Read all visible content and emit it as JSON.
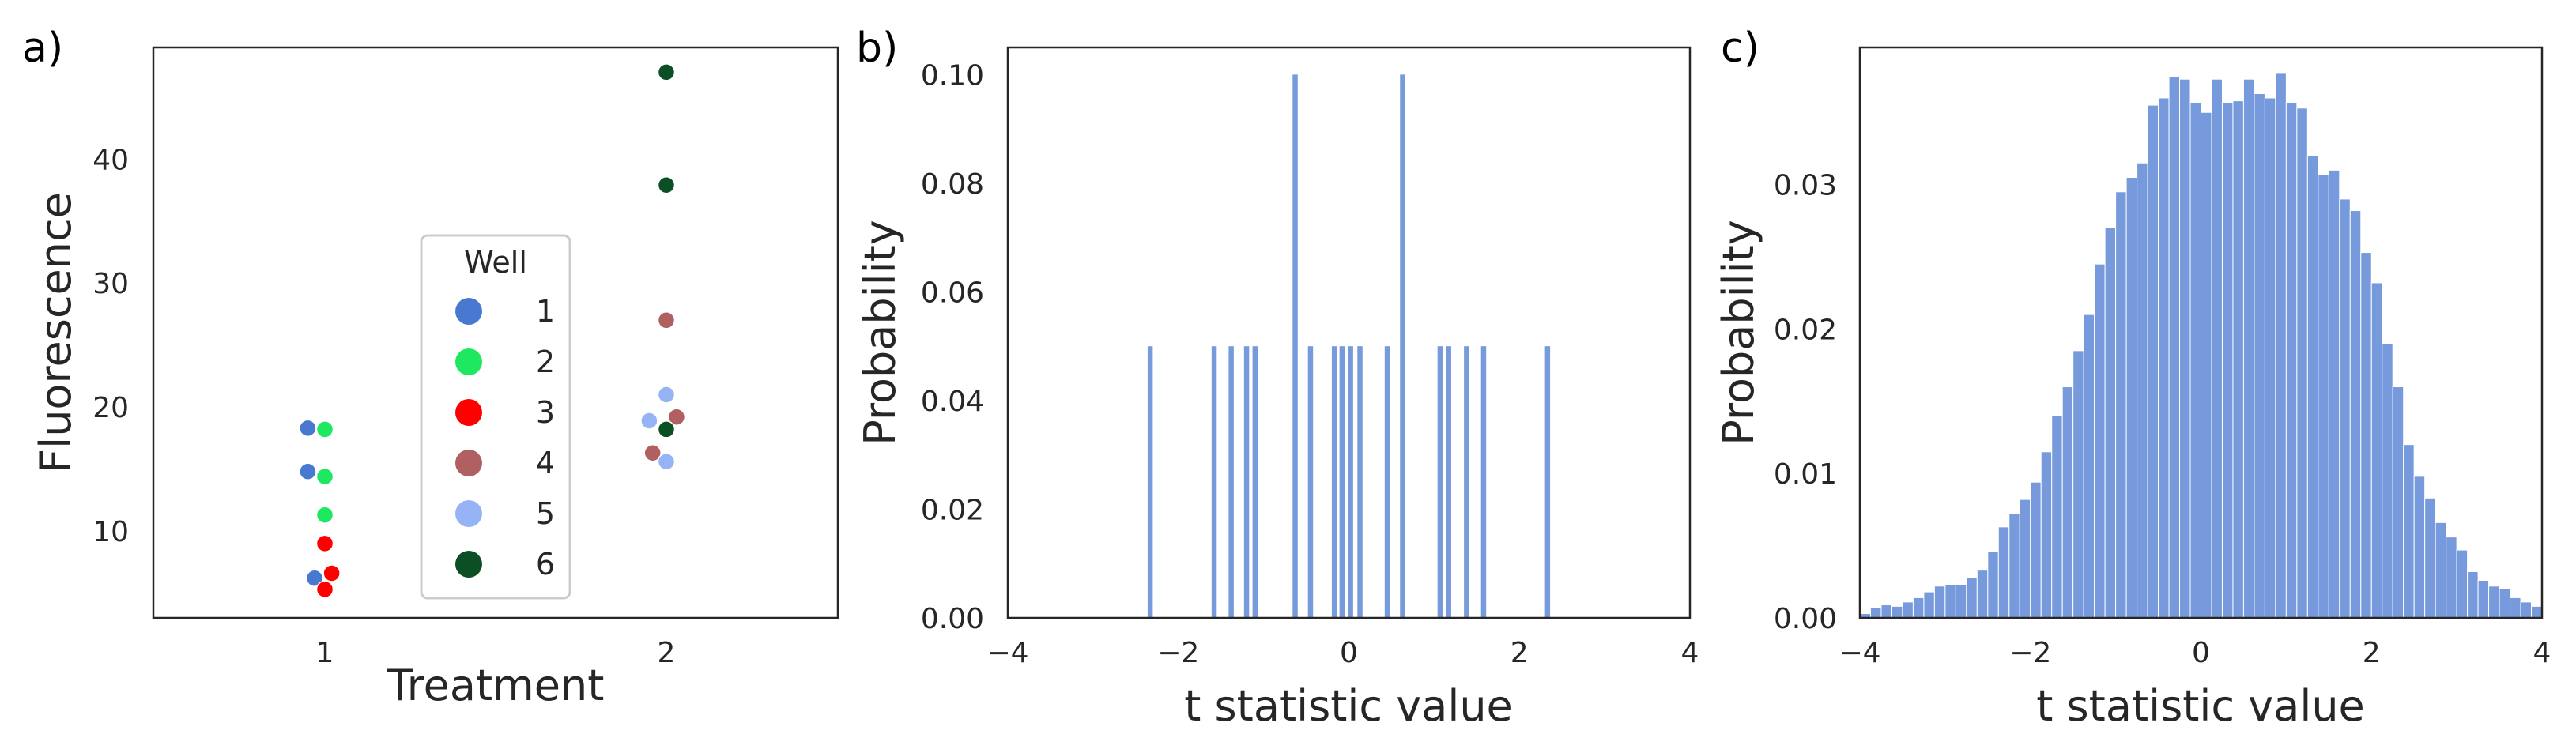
{
  "chart_data": [
    {
      "panel": "a)",
      "type": "scatter",
      "xlabel": "Treatment",
      "ylabel": "Fluorescence",
      "categories": [
        "1",
        "2"
      ],
      "yticks": [
        "10",
        "20",
        "30",
        "40"
      ],
      "ylim": [
        3,
        49
      ],
      "legend": {
        "title": "Well",
        "placement": "center",
        "entries": [
          {
            "label": "1",
            "color": "#4878d0"
          },
          {
            "label": "2",
            "color": "#1ee860"
          },
          {
            "label": "3",
            "color": "#ff0000"
          },
          {
            "label": "4",
            "color": "#b06060"
          },
          {
            "label": "5",
            "color": "#96b4f5"
          },
          {
            "label": "6",
            "color": "#0c4f24"
          }
        ]
      },
      "points": [
        {
          "treatment": 1,
          "well": 1,
          "y": 18.3,
          "jitter": -0.05
        },
        {
          "treatment": 1,
          "well": 1,
          "y": 14.8,
          "jitter": -0.05
        },
        {
          "treatment": 1,
          "well": 1,
          "y": 6.2,
          "jitter": -0.03
        },
        {
          "treatment": 1,
          "well": 2,
          "y": 18.2,
          "jitter": 0.0
        },
        {
          "treatment": 1,
          "well": 2,
          "y": 14.4,
          "jitter": 0.0
        },
        {
          "treatment": 1,
          "well": 2,
          "y": 11.3,
          "jitter": 0.0
        },
        {
          "treatment": 1,
          "well": 3,
          "y": 9.0,
          "jitter": 0.0
        },
        {
          "treatment": 1,
          "well": 3,
          "y": 6.6,
          "jitter": 0.02
        },
        {
          "treatment": 1,
          "well": 3,
          "y": 5.3,
          "jitter": 0.0
        },
        {
          "treatment": 2,
          "well": 4,
          "y": 27.0,
          "jitter": 0.0
        },
        {
          "treatment": 2,
          "well": 4,
          "y": 19.2,
          "jitter": 0.03
        },
        {
          "treatment": 2,
          "well": 4,
          "y": 16.3,
          "jitter": -0.04
        },
        {
          "treatment": 2,
          "well": 5,
          "y": 21.0,
          "jitter": 0.0
        },
        {
          "treatment": 2,
          "well": 5,
          "y": 18.9,
          "jitter": -0.05
        },
        {
          "treatment": 2,
          "well": 5,
          "y": 15.6,
          "jitter": 0.0
        },
        {
          "treatment": 2,
          "well": 6,
          "y": 47.0,
          "jitter": 0.0
        },
        {
          "treatment": 2,
          "well": 6,
          "y": 37.9,
          "jitter": 0.0
        },
        {
          "treatment": 2,
          "well": 6,
          "y": 18.2,
          "jitter": 0.0
        }
      ]
    },
    {
      "panel": "b)",
      "type": "bar",
      "xlabel": "t statistic value",
      "ylabel": "Probability",
      "xlim": [
        -4,
        4
      ],
      "ylim": [
        0,
        0.105
      ],
      "xticks": [
        "−4",
        "−2",
        "0",
        "2",
        "4"
      ],
      "yticks": [
        "0.00",
        "0.02",
        "0.04",
        "0.06",
        "0.08",
        "0.10"
      ],
      "color": "#4878d0",
      "bar_width": 0.06,
      "bars": [
        {
          "x": -2.33,
          "p": 0.05
        },
        {
          "x": -1.58,
          "p": 0.05
        },
        {
          "x": -1.38,
          "p": 0.05
        },
        {
          "x": -1.2,
          "p": 0.05
        },
        {
          "x": -1.1,
          "p": 0.05
        },
        {
          "x": -0.63,
          "p": 0.1
        },
        {
          "x": -0.45,
          "p": 0.05
        },
        {
          "x": -0.17,
          "p": 0.05
        },
        {
          "x": -0.08,
          "p": 0.05
        },
        {
          "x": 0.02,
          "p": 0.05
        },
        {
          "x": 0.13,
          "p": 0.05
        },
        {
          "x": 0.45,
          "p": 0.05
        },
        {
          "x": 0.63,
          "p": 0.1
        },
        {
          "x": 1.07,
          "p": 0.05
        },
        {
          "x": 1.17,
          "p": 0.05
        },
        {
          "x": 1.38,
          "p": 0.05
        },
        {
          "x": 1.58,
          "p": 0.05
        },
        {
          "x": 2.33,
          "p": 0.05
        }
      ]
    },
    {
      "panel": "c)",
      "type": "bar",
      "xlabel": "t statistic value",
      "ylabel": "Probability",
      "xlim": [
        -4,
        4
      ],
      "ylim": [
        0,
        0.0395
      ],
      "xticks": [
        "−4",
        "−2",
        "0",
        "2",
        "4"
      ],
      "yticks": [
        "0.00",
        "0.01",
        "0.02",
        "0.03"
      ],
      "color": "#4878d0",
      "bin_start": -4,
      "bin_width": 0.125,
      "values": [
        0.0003,
        0.0007,
        0.0009,
        0.0008,
        0.0011,
        0.0014,
        0.0018,
        0.0022,
        0.0023,
        0.0023,
        0.0028,
        0.0033,
        0.0046,
        0.0063,
        0.0072,
        0.0082,
        0.0094,
        0.0115,
        0.014,
        0.016,
        0.0185,
        0.021,
        0.0245,
        0.027,
        0.0295,
        0.0305,
        0.0315,
        0.0355,
        0.036,
        0.0375,
        0.0373,
        0.0357,
        0.035,
        0.0373,
        0.0357,
        0.0358,
        0.0373,
        0.0363,
        0.036,
        0.0377,
        0.0357,
        0.0353,
        0.032,
        0.0307,
        0.031,
        0.029,
        0.0282,
        0.0253,
        0.0232,
        0.019,
        0.016,
        0.012,
        0.0098,
        0.0083,
        0.0066,
        0.0056,
        0.0047,
        0.0032,
        0.0026,
        0.0022,
        0.002,
        0.0014,
        0.0011,
        0.0008
      ]
    }
  ]
}
